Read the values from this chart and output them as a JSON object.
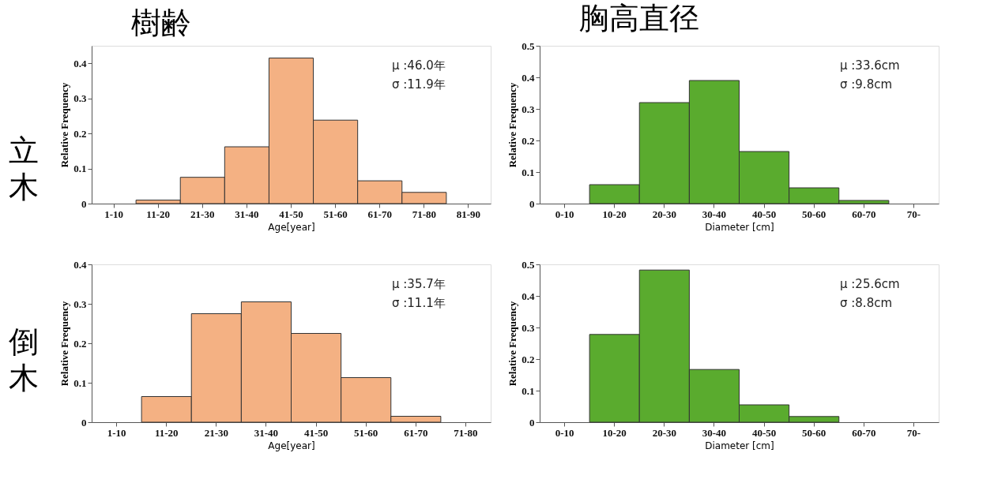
{
  "chart_data": [
    {
      "type": "bar",
      "title": "樹齢",
      "ylabel": "Relative Frequency",
      "xlabel": "Age[year]",
      "categories": [
        "1-10",
        "11-20",
        "21-30",
        "31-40",
        "41-50",
        "51-60",
        "61-70",
        "71-80",
        "81-90"
      ],
      "values": [
        null,
        0.01,
        0.075,
        0.162,
        0.415,
        0.238,
        0.065,
        0.032,
        null
      ],
      "color": "#f4b183",
      "ylim": [
        0,
        0.45
      ],
      "yticks": [
        0,
        0.1,
        0.2,
        0.3,
        0.4
      ],
      "grid": false,
      "annotations": [
        "立木",
        "μ :46.0年",
        "σ :11.9年"
      ]
    },
    {
      "type": "bar",
      "title": "胸高直径",
      "ylabel": "Relative Frequency",
      "xlabel": "Diameter [cm]",
      "categories": [
        "0-10",
        "10-20",
        "20-30",
        "30-40",
        "40-50",
        "50-60",
        "60-70",
        "70-"
      ],
      "values": [
        null,
        0.06,
        0.32,
        0.39,
        0.165,
        0.05,
        0.01,
        null
      ],
      "color": "#5aab2e",
      "ylim": [
        0,
        0.5
      ],
      "yticks": [
        0,
        0.1,
        0.2,
        0.3,
        0.4,
        0.5
      ],
      "grid": false,
      "annotations": [
        "μ :33.6cm",
        "σ :9.8cm"
      ]
    },
    {
      "type": "bar",
      "ylabel": "Relative Frequency",
      "xlabel": "Age[year]",
      "categories": [
        "1-10",
        "11-20",
        "21-30",
        "31-40",
        "41-50",
        "51-60",
        "61-70",
        "71-80"
      ],
      "values": [
        null,
        0.065,
        0.275,
        0.305,
        0.225,
        0.113,
        0.015,
        null
      ],
      "color": "#f4b183",
      "ylim": [
        0,
        0.4
      ],
      "yticks": [
        0,
        0.1,
        0.2,
        0.3,
        0.4
      ],
      "grid": false,
      "annotations": [
        "倒木",
        "μ :35.7年",
        "σ :11.1年"
      ]
    },
    {
      "type": "bar",
      "ylabel": "Relative Frequency",
      "xlabel": "Diameter [cm]",
      "categories": [
        "0-10",
        "10-20",
        "20-30",
        "30-40",
        "40-50",
        "50-60",
        "60-70",
        "70-"
      ],
      "values": [
        null,
        0.278,
        0.482,
        0.167,
        0.055,
        0.018,
        null,
        null
      ],
      "color": "#5aab2e",
      "ylim": [
        0,
        0.5
      ],
      "yticks": [
        0,
        0.1,
        0.2,
        0.3,
        0.4,
        0.5
      ],
      "grid": false,
      "annotations": [
        "μ :25.6cm",
        "σ :8.8cm"
      ]
    }
  ]
}
